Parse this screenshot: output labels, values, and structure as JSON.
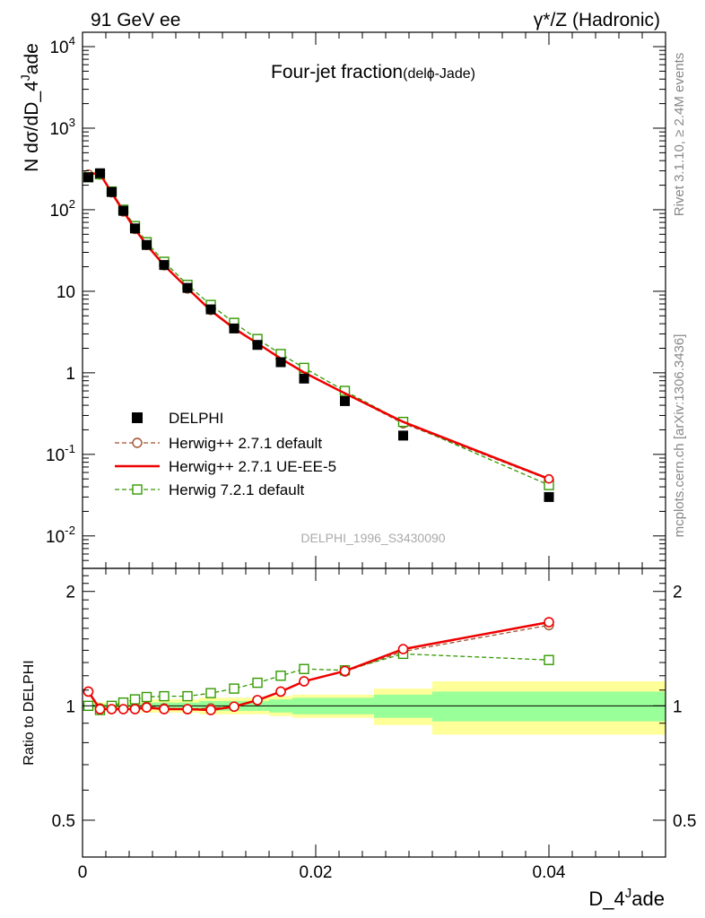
{
  "header": {
    "left": "91 GeV ee",
    "right": "γ*/Z (Hadronic)"
  },
  "side_text": {
    "rivet": "Rivet 3.1.10, ≥ 2.4M events",
    "mcplots": "mcplots.cern.ch [arXiv:1306.3436]"
  },
  "chart_data": [
    {
      "type": "scatter",
      "title": "Four-jet fraction",
      "subtitle": "(delɸ-Jade)",
      "watermark": "DELPHI_1996_S3430090",
      "ylabel": "N dσ/dD_4^Jade",
      "xlim": [
        0,
        0.05
      ],
      "ylim": [
        0.004,
        15000
      ],
      "y_scale": "log",
      "y_ticks": [
        {
          "value": 0.01,
          "label": "10^-2"
        },
        {
          "value": 0.1,
          "label": "10^-1"
        },
        {
          "value": 1,
          "label": "1"
        },
        {
          "value": 10,
          "label": "10"
        },
        {
          "value": 100,
          "label": "10^2"
        },
        {
          "value": 1000,
          "label": "10^3"
        },
        {
          "value": 10000,
          "label": "10^4"
        }
      ],
      "legend": {
        "placement": "bottom-left"
      },
      "series": [
        {
          "name": "DELPHI",
          "style": "data",
          "color": "#000000",
          "x": [
            0.0005,
            0.0015,
            0.0025,
            0.0035,
            0.0045,
            0.0055,
            0.007,
            0.009,
            0.011,
            0.013,
            0.015,
            0.017,
            0.019,
            0.0225,
            0.0275,
            0.04
          ],
          "y": [
            250,
            280,
            165,
            97,
            59,
            37,
            21,
            11,
            6.0,
            3.5,
            2.2,
            1.35,
            0.85,
            0.45,
            0.17,
            0.03
          ]
        },
        {
          "name": "Herwig++ 2.7.1 default",
          "style": "circle-dashed",
          "color": "#a0522d",
          "x": [
            0.0005,
            0.0015,
            0.0025,
            0.0035,
            0.0045,
            0.0055,
            0.007,
            0.009,
            0.011,
            0.013,
            0.015,
            0.017,
            0.019,
            0.0225,
            0.0275,
            0.04
          ],
          "y": [
            270,
            270,
            163,
            95,
            58,
            37,
            20.8,
            10.8,
            5.9,
            3.6,
            2.3,
            1.5,
            1.0,
            0.56,
            0.24,
            0.049
          ]
        },
        {
          "name": "Herwig++ 2.7.1 UE-EE-5",
          "style": "solid",
          "color": "#ee0000",
          "x": [
            0.0005,
            0.0015,
            0.0025,
            0.0035,
            0.0045,
            0.0055,
            0.007,
            0.009,
            0.011,
            0.013,
            0.015,
            0.017,
            0.019,
            0.0225,
            0.0275,
            0.04
          ],
          "y": [
            280,
            275,
            162,
            96,
            58,
            37,
            20.8,
            10.9,
            5.8,
            3.5,
            2.3,
            1.5,
            1.01,
            0.56,
            0.25,
            0.05
          ]
        },
        {
          "name": "Herwig 7.2.1 default",
          "style": "square-dashed",
          "color": "#339900",
          "x": [
            0.0005,
            0.0015,
            0.0025,
            0.0035,
            0.0045,
            0.0055,
            0.007,
            0.009,
            0.011,
            0.013,
            0.015,
            0.017,
            0.019,
            0.0225,
            0.0275,
            0.04
          ],
          "y": [
            250,
            272,
            167,
            100,
            63,
            40,
            23,
            12,
            6.8,
            4.1,
            2.6,
            1.7,
            1.15,
            0.6,
            0.25,
            0.042
          ]
        }
      ]
    },
    {
      "type": "line",
      "ylabel": "Ratio to DELPHI",
      "xlabel": "D_4^Jade",
      "xlim": [
        0,
        0.05
      ],
      "ylim": [
        0.4,
        2.3
      ],
      "y_scale": "log",
      "x_ticks": [
        {
          "value": 0,
          "label": "0"
        },
        {
          "value": 0.02,
          "label": "0.02"
        },
        {
          "value": 0.04,
          "label": "0.04"
        }
      ],
      "y_ticks": [
        {
          "value": 0.5,
          "label": "0.5"
        },
        {
          "value": 1,
          "label": "1"
        },
        {
          "value": 2,
          "label": "2"
        }
      ],
      "bands": [
        {
          "x0": 0,
          "x1": 0.005,
          "stat": 0.01,
          "total": 0.02
        },
        {
          "x0": 0.005,
          "x1": 0.01,
          "stat": 0.02,
          "total": 0.04
        },
        {
          "x0": 0.01,
          "x1": 0.016,
          "stat": 0.03,
          "total": 0.05
        },
        {
          "x0": 0.016,
          "x1": 0.018,
          "stat": 0.04,
          "total": 0.06
        },
        {
          "x0": 0.018,
          "x1": 0.025,
          "stat": 0.05,
          "total": 0.07
        },
        {
          "x0": 0.025,
          "x1": 0.03,
          "stat": 0.07,
          "total": 0.11
        },
        {
          "x0": 0.03,
          "x1": 0.05,
          "stat": 0.09,
          "total": 0.16
        }
      ],
      "series": [
        {
          "name": "Herwig++ 2.7.1 default",
          "style": "circle-dashed",
          "color": "#a0522d",
          "x": [
            0.0005,
            0.0015,
            0.0025,
            0.0035,
            0.0045,
            0.0055,
            0.007,
            0.009,
            0.011,
            0.013,
            0.015,
            0.017,
            0.019,
            0.0225,
            0.0275,
            0.04
          ],
          "y": [
            1.09,
            0.985,
            0.985,
            0.985,
            0.985,
            0.995,
            0.985,
            0.98,
            0.985,
            0.995,
            1.035,
            1.09,
            1.16,
            1.23,
            1.39,
            1.63
          ]
        },
        {
          "name": "Herwig++ 2.7.1 UE-EE-5",
          "style": "solid",
          "color": "#ee0000",
          "x": [
            0.0005,
            0.0015,
            0.0025,
            0.0035,
            0.0045,
            0.0055,
            0.007,
            0.009,
            0.011,
            0.013,
            0.015,
            0.017,
            0.019,
            0.0225,
            0.0275,
            0.04
          ],
          "y": [
            1.09,
            0.98,
            0.98,
            0.98,
            0.98,
            0.99,
            0.98,
            0.98,
            0.975,
            0.995,
            1.035,
            1.09,
            1.16,
            1.235,
            1.41,
            1.66
          ]
        },
        {
          "name": "Herwig 7.2.1 default",
          "style": "square-dashed",
          "color": "#339900",
          "x": [
            0.0005,
            0.0015,
            0.0025,
            0.0035,
            0.0045,
            0.0055,
            0.007,
            0.009,
            0.011,
            0.013,
            0.015,
            0.017,
            0.019,
            0.0225,
            0.0275,
            0.04
          ],
          "y": [
            1.0,
            0.975,
            1.0,
            1.02,
            1.04,
            1.055,
            1.06,
            1.06,
            1.08,
            1.11,
            1.15,
            1.2,
            1.25,
            1.24,
            1.37,
            1.32
          ]
        }
      ]
    }
  ]
}
